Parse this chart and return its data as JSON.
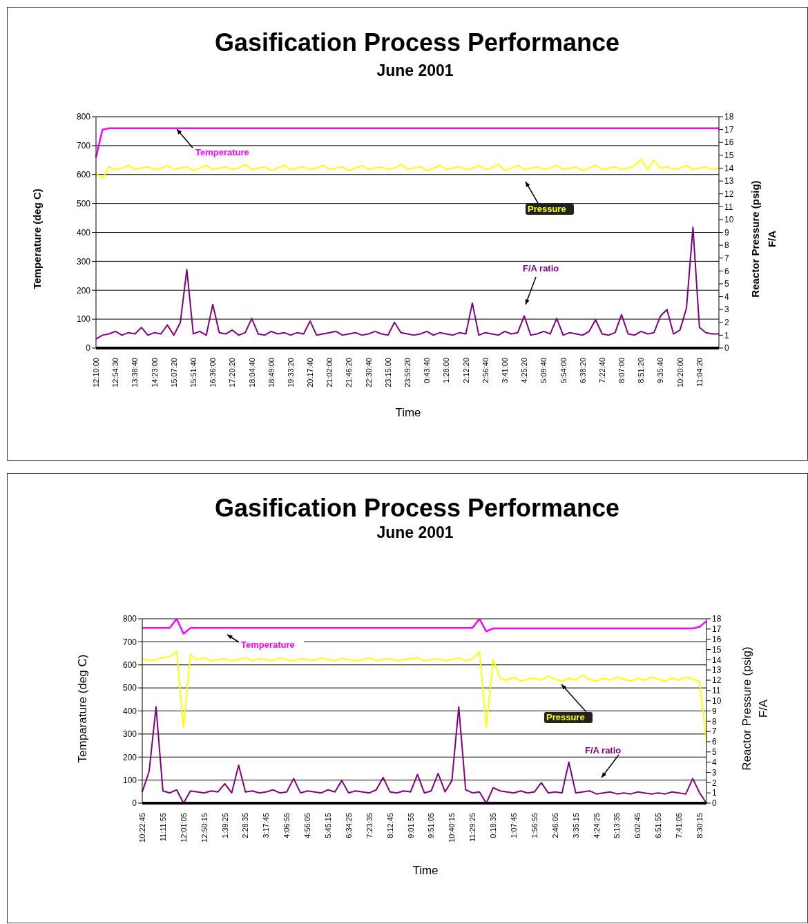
{
  "chart_data": [
    {
      "type": "line",
      "title": "Gasification Process Performance",
      "subtitle": "June 2001",
      "xlabel": "Time",
      "ylabel": "Temperature (deg C)",
      "y2label": "Reactor Pressure (psig)\nF/A",
      "grid": "y",
      "legend": false,
      "marker": "none",
      "ylim": [
        0,
        800
      ],
      "yticks": [
        0,
        100,
        200,
        300,
        400,
        500,
        600,
        700,
        800
      ],
      "y2lim": [
        0,
        18
      ],
      "y2ticks": [
        0,
        1,
        2,
        3,
        4,
        5,
        6,
        7,
        8,
        9,
        10,
        11,
        12,
        13,
        14,
        15,
        16,
        17,
        18
      ],
      "categories": [
        "12:10:00",
        null,
        null,
        "12:54:30",
        null,
        null,
        "13:38:40",
        null,
        null,
        "14:23:00",
        null,
        null,
        "15:07:20",
        null,
        null,
        "15:51:40",
        null,
        null,
        "16:36:00",
        null,
        null,
        "17:20:20",
        null,
        null,
        "18:04:40",
        null,
        null,
        "18:49:00",
        null,
        null,
        "19:33:20",
        null,
        null,
        "20:17:40",
        null,
        null,
        "21:02:00",
        null,
        null,
        "21:46:20",
        null,
        null,
        "22:30:40",
        null,
        null,
        "23:15:00",
        null,
        null,
        "23:59:20",
        null,
        null,
        "0:43:40",
        null,
        null,
        "1:28:00",
        null,
        null,
        "2:12:20",
        null,
        null,
        "2:56:40",
        null,
        null,
        "3:41:00",
        null,
        null,
        "4:25:20",
        null,
        null,
        "5:09:40",
        null,
        null,
        "5:54:00",
        null,
        null,
        "6:38:20",
        null,
        null,
        "7:22:40",
        null,
        null,
        "8:07:00",
        null,
        null,
        "8:51:20",
        null,
        null,
        "9:35:40",
        null,
        null,
        "10:20:00",
        null,
        null,
        "11:04:20",
        null,
        null,
        null
      ],
      "series": [
        {
          "name": "Temperature",
          "color": "#ff00ff",
          "values": [
            660,
            755,
            760,
            760,
            760,
            760,
            760,
            760,
            760,
            760,
            760,
            760,
            760,
            760,
            760,
            760,
            760,
            760,
            760,
            760,
            760,
            760,
            760,
            760,
            760,
            760,
            760,
            760,
            760,
            760,
            760,
            760,
            760,
            760,
            760,
            760,
            760,
            760,
            760,
            760,
            760,
            760,
            760,
            760,
            760,
            760,
            760,
            760,
            760,
            760,
            760,
            760,
            760,
            760,
            760,
            760,
            760,
            760,
            760,
            760,
            760,
            760,
            760,
            760,
            760,
            760,
            760,
            760,
            760,
            760,
            760,
            760,
            760,
            760,
            760,
            760,
            760,
            760,
            760,
            760,
            760,
            760,
            760,
            760,
            760,
            760,
            760,
            760,
            760,
            760,
            760,
            760,
            760,
            760,
            760,
            760,
            760
          ]
        },
        {
          "name": "Pressure",
          "color": "#ffff00",
          "axis": "y2",
          "values": [
            13.6,
            13.2,
            14.1,
            13.9,
            14.0,
            14.2,
            13.9,
            14.0,
            14.1,
            13.9,
            14.0,
            14.2,
            13.9,
            14.0,
            14.1,
            13.8,
            14.0,
            14.2,
            13.9,
            14.0,
            14.1,
            13.9,
            14.0,
            14.3,
            13.9,
            14.0,
            14.1,
            13.8,
            14.0,
            14.2,
            13.9,
            14.0,
            14.1,
            13.9,
            14.0,
            14.2,
            13.9,
            14.0,
            14.1,
            13.8,
            14.0,
            14.2,
            13.9,
            14.0,
            14.1,
            13.9,
            14.0,
            14.3,
            13.9,
            14.0,
            14.1,
            13.8,
            14.0,
            14.2,
            13.9,
            14.0,
            14.1,
            13.9,
            14.0,
            14.2,
            13.9,
            14.0,
            14.3,
            13.8,
            14.0,
            14.2,
            13.9,
            14.0,
            14.1,
            13.9,
            14.0,
            14.2,
            13.9,
            14.0,
            14.1,
            13.8,
            14.0,
            14.2,
            13.9,
            14.0,
            14.1,
            13.9,
            14.0,
            14.2,
            14.7,
            13.9,
            14.6,
            14.0,
            14.1,
            13.9,
            14.0,
            14.2,
            13.9,
            14.0,
            14.1,
            13.9,
            14.0
          ]
        },
        {
          "name": "F/A ratio",
          "color": "#800080",
          "axis": "y2",
          "values": [
            0.7,
            1.0,
            1.1,
            1.3,
            1.0,
            1.2,
            1.1,
            1.6,
            1.0,
            1.2,
            1.1,
            1.8,
            1.0,
            2.0,
            6.1,
            1.1,
            1.3,
            1.0,
            3.4,
            1.2,
            1.1,
            1.4,
            1.0,
            1.2,
            2.3,
            1.1,
            1.0,
            1.3,
            1.1,
            1.2,
            1.0,
            1.2,
            1.1,
            2.1,
            1.0,
            1.1,
            1.2,
            1.3,
            1.0,
            1.1,
            1.2,
            1.0,
            1.1,
            1.3,
            1.1,
            1.0,
            2.0,
            1.2,
            1.1,
            1.0,
            1.1,
            1.3,
            1.0,
            1.2,
            1.1,
            1.0,
            1.2,
            1.1,
            3.5,
            1.0,
            1.2,
            1.1,
            1.0,
            1.3,
            1.1,
            1.2,
            2.5,
            1.0,
            1.1,
            1.3,
            1.1,
            2.3,
            1.0,
            1.2,
            1.1,
            1.0,
            1.3,
            2.2,
            1.1,
            1.0,
            1.2,
            2.6,
            1.1,
            1.0,
            1.3,
            1.1,
            1.2,
            2.5,
            3.0,
            1.1,
            1.4,
            3.1,
            9.4,
            1.6,
            1.2,
            1.1,
            1.1
          ]
        }
      ]
    },
    {
      "type": "line",
      "title": "Gasification Process Performance",
      "subtitle": "June 2001",
      "xlabel": "Time",
      "ylabel": "Temparature (deg C)",
      "y2label": "Reactor Pressure (psig)\nF/A",
      "grid": "y",
      "legend": false,
      "marker": "none",
      "ylim": [
        0,
        800
      ],
      "yticks": [
        0,
        100,
        200,
        300,
        400,
        500,
        600,
        700,
        800
      ],
      "y2lim": [
        0,
        18
      ],
      "y2ticks": [
        0,
        1,
        2,
        3,
        4,
        5,
        6,
        7,
        8,
        9,
        10,
        11,
        12,
        13,
        14,
        15,
        16,
        17,
        18
      ],
      "categories": [
        "10:22:45",
        null,
        null,
        "11:11:55",
        null,
        null,
        "12:01:05",
        null,
        null,
        "12:50:15",
        null,
        null,
        "1:39:25",
        null,
        null,
        "2:28:35",
        null,
        null,
        "3:17:45",
        null,
        null,
        "4:06:55",
        null,
        null,
        "4:56:05",
        null,
        null,
        "5:45:15",
        null,
        null,
        "6:34:25",
        null,
        null,
        "7:23:35",
        null,
        null,
        "8:12:45",
        null,
        null,
        "9:01:55",
        null,
        null,
        "9:51:05",
        null,
        null,
        "10:40:15",
        null,
        null,
        "11:29:25",
        null,
        null,
        "0:18:35",
        null,
        null,
        "1:07:45",
        null,
        null,
        "1:56:55",
        null,
        null,
        "2:46:05",
        null,
        null,
        "3:35:15",
        null,
        null,
        "4:24:25",
        null,
        null,
        "5:13:35",
        null,
        null,
        "6:02:45",
        null,
        null,
        "6:51:55",
        null,
        null,
        "7:41:05",
        null,
        null,
        "8:30:15",
        null
      ],
      "series": [
        {
          "name": "Temperature",
          "color": "#ff00ff",
          "values": [
            760,
            760,
            760,
            760,
            760,
            800,
            735,
            760,
            760,
            760,
            760,
            760,
            760,
            760,
            760,
            760,
            760,
            760,
            760,
            760,
            760,
            760,
            760,
            760,
            760,
            760,
            760,
            760,
            760,
            760,
            760,
            760,
            760,
            760,
            760,
            760,
            760,
            760,
            760,
            760,
            760,
            760,
            760,
            760,
            760,
            760,
            760,
            760,
            760,
            800,
            745,
            758,
            758,
            758,
            758,
            758,
            758,
            758,
            758,
            758,
            758,
            758,
            758,
            758,
            758,
            758,
            758,
            758,
            758,
            758,
            758,
            758,
            758,
            758,
            758,
            758,
            758,
            758,
            758,
            758,
            758,
            765,
            790
          ]
        },
        {
          "name": "Pressure",
          "color": "#ffff00",
          "axis": "y2",
          "values": [
            14.1,
            13.9,
            14.0,
            14.2,
            14.3,
            14.8,
            7.4,
            14.5,
            14.0,
            14.2,
            13.9,
            14.0,
            14.1,
            13.9,
            14.0,
            14.2,
            13.9,
            14.1,
            14.0,
            13.9,
            14.2,
            14.0,
            13.9,
            14.1,
            14.0,
            13.9,
            14.2,
            14.0,
            13.9,
            14.1,
            14.0,
            13.9,
            14.0,
            14.2,
            13.9,
            14.0,
            14.1,
            13.9,
            14.0,
            14.1,
            14.2,
            13.9,
            14.0,
            14.1,
            13.9,
            14.0,
            14.2,
            13.9,
            14.1,
            14.8,
            7.4,
            14.0,
            12.2,
            12.0,
            12.3,
            11.9,
            12.1,
            12.2,
            12.0,
            12.4,
            12.1,
            11.9,
            12.2,
            12.0,
            12.5,
            12.1,
            11.9,
            12.2,
            12.0,
            12.3,
            12.1,
            11.9,
            12.2,
            12.0,
            12.3,
            12.1,
            11.9,
            12.2,
            12.0,
            12.3,
            12.1,
            11.9,
            6.1
          ]
        },
        {
          "name": "F/A ratio",
          "color": "#800080",
          "axis": "y2",
          "values": [
            1.1,
            3.1,
            9.4,
            1.2,
            1.0,
            1.3,
            0.0,
            1.2,
            1.1,
            1.0,
            1.2,
            1.1,
            1.9,
            1.0,
            3.7,
            1.1,
            1.2,
            1.0,
            1.1,
            1.3,
            1.0,
            1.1,
            2.4,
            1.0,
            1.2,
            1.1,
            1.0,
            1.3,
            1.1,
            2.2,
            1.0,
            1.2,
            1.1,
            1.0,
            1.3,
            2.5,
            1.1,
            1.0,
            1.2,
            1.1,
            2.8,
            1.0,
            1.2,
            2.9,
            1.1,
            2.2,
            9.4,
            1.3,
            1.0,
            1.1,
            0.0,
            1.5,
            1.2,
            1.1,
            1.0,
            1.2,
            1.0,
            1.1,
            2.0,
            1.0,
            1.1,
            1.0,
            4.0,
            1.0,
            1.1,
            1.2,
            0.9,
            1.0,
            1.1,
            0.9,
            1.0,
            0.9,
            1.1,
            1.0,
            0.9,
            1.0,
            0.9,
            1.1,
            1.0,
            0.9,
            2.4,
            1.0,
            0.0
          ]
        }
      ]
    }
  ]
}
